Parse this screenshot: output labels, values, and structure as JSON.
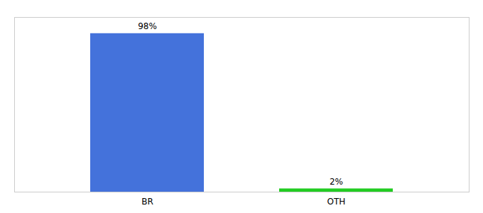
{
  "chart_data": {
    "type": "bar",
    "categories": [
      "BR",
      "OTH"
    ],
    "values": [
      98,
      2
    ],
    "value_labels": [
      "98%",
      "2%"
    ],
    "colors": [
      "#4472DB",
      "#22CC22"
    ],
    "ylim": [
      0,
      108
    ],
    "data_labels": true,
    "tick_labels": "x"
  }
}
